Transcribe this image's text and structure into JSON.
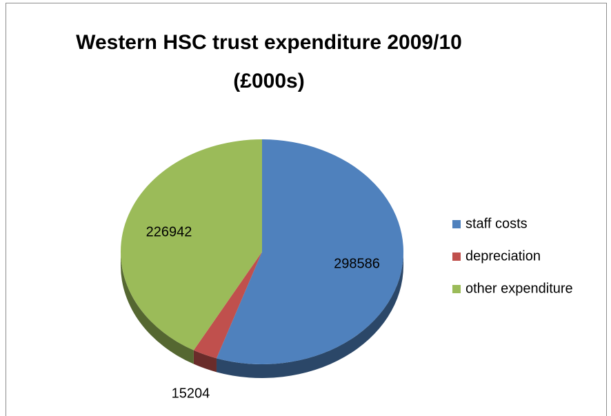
{
  "chart_data": {
    "type": "pie",
    "title": "Western HSC trust expenditure 2009/10 (£000s)",
    "categories": [
      "staff costs",
      "depreciation",
      "other expenditure"
    ],
    "values": [
      298586,
      15204,
      226942
    ],
    "colors": [
      "#4f81bd",
      "#c0504d",
      "#9bbb59"
    ],
    "legend": "right"
  }
}
